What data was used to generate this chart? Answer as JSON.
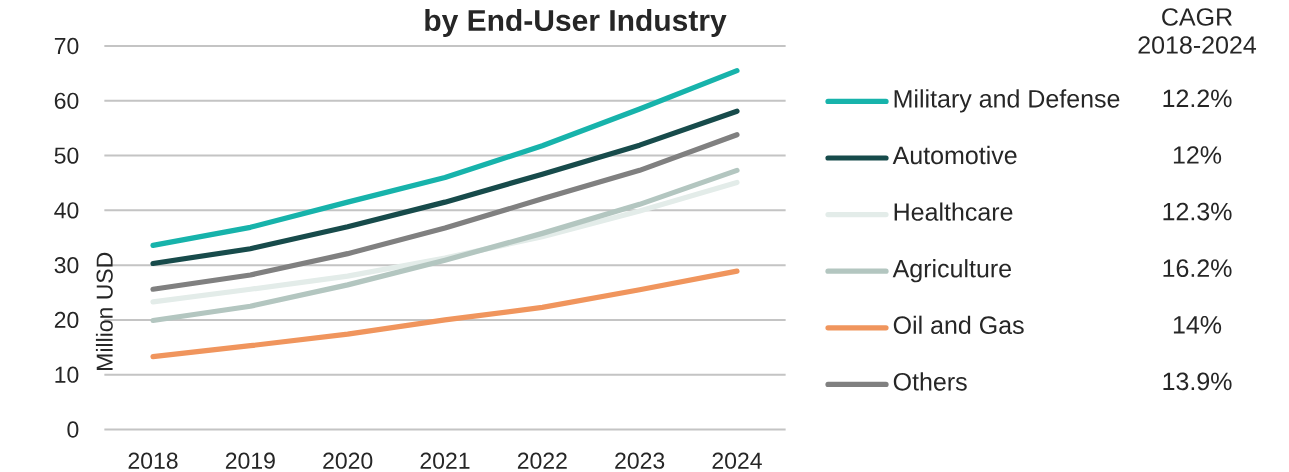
{
  "chart_data": {
    "type": "line",
    "title": "by End-User Industry",
    "ylabel": "Million USD",
    "categories": [
      "2018",
      "2019",
      "2020",
      "2021",
      "2022",
      "2023",
      "2024"
    ],
    "series": [
      {
        "name": "Military and Defense",
        "color": "#17b3ab",
        "values": [
          33.6,
          36.9,
          41.5,
          46.0,
          51.8,
          58.5,
          65.5
        ]
      },
      {
        "name": "Automotive",
        "color": "#174b4b",
        "values": [
          30.3,
          33.0,
          37.0,
          41.5,
          46.6,
          51.9,
          58.1
        ]
      },
      {
        "name": "Healthcare",
        "color": "#e3ece9",
        "values": [
          23.3,
          25.6,
          28.0,
          31.3,
          35.2,
          39.9,
          45.1
        ]
      },
      {
        "name": "Agriculture",
        "color": "#b3c6c0",
        "values": [
          19.9,
          22.5,
          26.4,
          30.9,
          35.8,
          41.1,
          47.3
        ]
      },
      {
        "name": "Oil and Gas",
        "color": "#f0955d",
        "values": [
          13.3,
          15.3,
          17.4,
          20.0,
          22.3,
          25.5,
          28.9
        ]
      },
      {
        "name": "Others",
        "color": "#808080",
        "values": [
          25.6,
          28.2,
          32.1,
          36.8,
          42.1,
          47.3,
          53.8
        ]
      }
    ],
    "ylim": [
      0,
      70
    ],
    "yticks": [
      0,
      10,
      20,
      30,
      40,
      50,
      60,
      70
    ],
    "grid": "y",
    "legend": "right",
    "marker": "none",
    "line_style": "solid",
    "annotations": [
      "CAGR 2018-2024",
      "12.2%",
      "12%",
      "12.3%",
      "16.2%",
      "14%",
      "13.9%"
    ]
  }
}
